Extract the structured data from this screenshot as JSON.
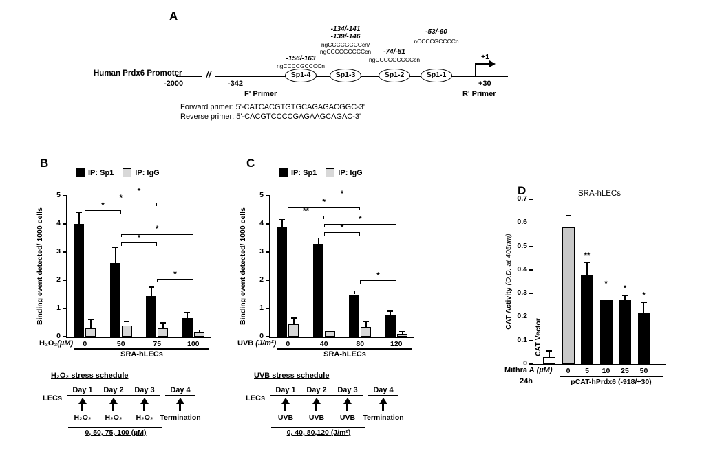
{
  "panelA": {
    "label": "A",
    "promoter_label": "Human Prdx6 Promoter",
    "break_symbol": "//",
    "pos_left": "-2000",
    "pos_mid": "-342",
    "pos_right": "+30",
    "tss_label": "+1",
    "f_primer": "F' Primer",
    "r_primer": "R' Primer",
    "forward_primer": "Forward primer: 5'-CATCACGTGTGCAGAGACGGC-3'",
    "reverse_primer": "Reverse primer: 5'-CACGTCCCCGAGAAGCAGAC-3'",
    "sites": [
      {
        "name": "Sp1-4",
        "pos": "-156/-163",
        "seq": "ngCCCCGCCCCn"
      },
      {
        "name": "Sp1-3",
        "pos": "-134/-141",
        "pos2": "-139/-146",
        "seq": "ngCCCCGCCCcn/",
        "seq2": "ngCCCCGCCCCcn"
      },
      {
        "name": "Sp1-2",
        "pos": "-74/-81",
        "seq": "ngCCCCGCCCCcn"
      },
      {
        "name": "Sp1-1",
        "pos": "-53/-60",
        "seq": "nCCCCGCCCCn"
      }
    ]
  },
  "panelB": {
    "label": "B",
    "schedule": {
      "title": "H₂O₂ stress schedule",
      "left_label": "LECs",
      "days": [
        "Day 1",
        "Day 2",
        "Day 3",
        "Day 4"
      ],
      "treatments": [
        "H₂O₂",
        "H₂O₂",
        "H₂O₂",
        "Termination"
      ],
      "doses": "0, 50, 75, 100 (µM)"
    }
  },
  "panelC": {
    "label": "C",
    "schedule": {
      "title": "UVB stress schedule",
      "left_label": "LECs",
      "days": [
        "Day 1",
        "Day 2",
        "Day 3",
        "Day 4"
      ],
      "treatments": [
        "UVB",
        "UVB",
        "UVB",
        "Termination"
      ],
      "doses": "0, 40, 80,120 (J/m²)"
    }
  },
  "panelD": {
    "label": "D",
    "construct_label": "pCAT-hPrdx6 (-918/+30)",
    "xlabel_main": "Mithra A",
    "xlabel_unit": " (µM)",
    "xlabel_time": "24h"
  },
  "chart_data": [
    {
      "type": "bar",
      "panel": "B",
      "ylabel": "Binding event detected/ 1000 cells",
      "xlabel_main": "H₂O₂",
      "xlabel_unit": "(µM)",
      "group_label": "SRA-hLECs",
      "categories": [
        "0",
        "50",
        "75",
        "100"
      ],
      "ylim": [
        0,
        5
      ],
      "ytick_values": [
        0,
        1,
        2,
        3,
        4,
        5
      ],
      "ytick_labels": [
        "0",
        "1",
        "2",
        "3",
        "4",
        "5"
      ],
      "grid": false,
      "legend_position": "top",
      "series": [
        {
          "name": "IP: Sp1",
          "color": "#000000",
          "values": [
            4.0,
            2.6,
            1.45,
            0.65
          ],
          "errors": [
            0.4,
            0.55,
            0.3,
            0.2
          ]
        },
        {
          "name": "IP: IgG",
          "color": "#d8d8d8",
          "values": [
            0.3,
            0.4,
            0.3,
            0.15
          ],
          "errors": [
            0.3,
            0.12,
            0.18,
            0.08
          ]
        }
      ],
      "significance": [
        {
          "from": 0,
          "to": 1,
          "label": "*",
          "y": 4.5
        },
        {
          "from": 0,
          "to": 2,
          "label": "*",
          "y": 4.75
        },
        {
          "from": 0,
          "to": 3,
          "label": "*",
          "y": 5.0
        },
        {
          "from": 1,
          "to": 2,
          "label": "*",
          "y": 3.35
        },
        {
          "from": 1,
          "to": 3,
          "label": "*",
          "y": 3.65
        },
        {
          "from": 2,
          "to": 3,
          "label": "*",
          "y": 2.05
        }
      ]
    },
    {
      "type": "bar",
      "panel": "C",
      "ylabel": "Binding event detected/ 1000 cells",
      "xlabel_main": "UVB",
      "xlabel_unit": " (J/m²)",
      "group_label": "SRA-hLECs",
      "categories": [
        "0",
        "40",
        "80",
        "120"
      ],
      "ylim": [
        0,
        5
      ],
      "ytick_values": [
        0,
        1,
        2,
        3,
        4,
        5
      ],
      "ytick_labels": [
        "0",
        "1",
        "2",
        "3",
        "4",
        "5"
      ],
      "grid": false,
      "legend_position": "top",
      "series": [
        {
          "name": "IP: Sp1",
          "color": "#000000",
          "values": [
            3.9,
            3.3,
            1.5,
            0.75
          ],
          "errors": [
            0.25,
            0.2,
            0.12,
            0.15
          ]
        },
        {
          "name": "IP: IgG",
          "color": "#d8d8d8",
          "values": [
            0.45,
            0.2,
            0.35,
            0.1
          ],
          "errors": [
            0.2,
            0.1,
            0.18,
            0.06
          ]
        }
      ],
      "significance": [
        {
          "from": 0,
          "to": 1,
          "label": "**",
          "y": 4.3
        },
        {
          "from": 0,
          "to": 2,
          "label": "*",
          "y": 4.6
        },
        {
          "from": 0,
          "to": 3,
          "label": "*",
          "y": 4.9
        },
        {
          "from": 1,
          "to": 2,
          "label": "*",
          "y": 3.7
        },
        {
          "from": 1,
          "to": 3,
          "label": "*",
          "y": 4.0
        },
        {
          "from": 2,
          "to": 3,
          "label": "*",
          "y": 2.0
        }
      ]
    },
    {
      "type": "bar",
      "panel": "D",
      "title": "SRA-hLECs",
      "ylabel_main": "CAT Activity",
      "ylabel_sub": " (O.D. at 405nm)",
      "categories": [
        "CAT Vector",
        "0",
        "5",
        "10",
        "25",
        "50"
      ],
      "values": [
        0.03,
        0.58,
        0.38,
        0.27,
        0.27,
        0.22
      ],
      "errors": [
        0.025,
        0.05,
        0.05,
        0.04,
        0.02,
        0.04
      ],
      "bar_colors": [
        "#ffffff",
        "#c8c8c8",
        "#000000",
        "#000000",
        "#000000",
        "#000000"
      ],
      "significance": [
        "",
        "",
        "**",
        "*",
        "*",
        "*"
      ],
      "ylim": [
        0,
        0.7
      ],
      "ytick_values": [
        0,
        0.1,
        0.2,
        0.3,
        0.4,
        0.5,
        0.6,
        0.7
      ],
      "ytick_labels": [
        "0",
        "0.1",
        "0.2",
        "0.3",
        "0.4",
        "0.5",
        "0.6",
        "0.7"
      ],
      "grid": false
    }
  ]
}
